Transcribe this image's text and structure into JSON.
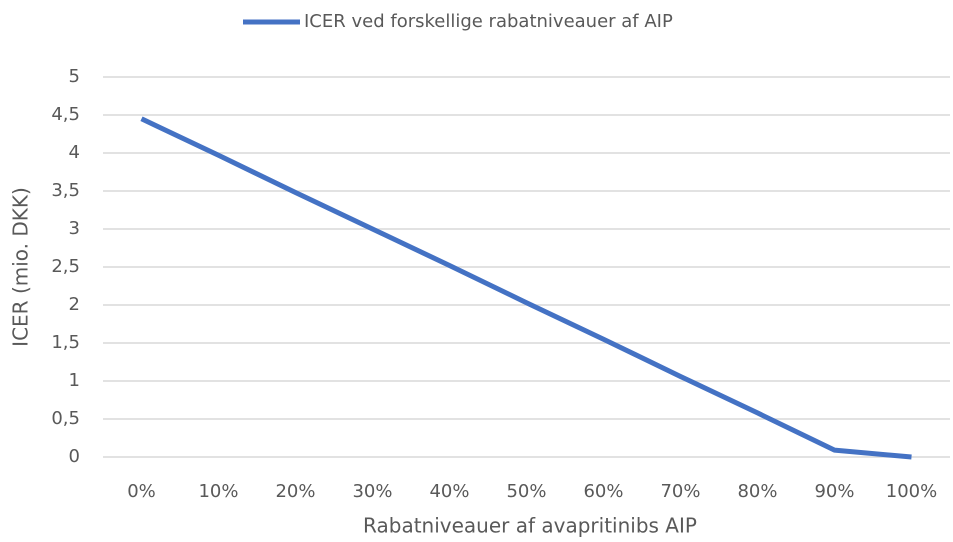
{
  "chart_data": {
    "type": "line",
    "x_label": "Rabatniveauer af avapritinibs AIP",
    "y_label": "ICER (mio. DKK)",
    "categories": [
      "0%",
      "10%",
      "20%",
      "30%",
      "40%",
      "50%",
      "60%",
      "70%",
      "80%",
      "90%",
      "100%"
    ],
    "series": [
      {
        "name": "ICER ved forskellige rabatniveauer af AIP",
        "color": "#4472c4",
        "values": [
          4.45,
          3.97,
          3.48,
          3.0,
          2.52,
          2.03,
          1.55,
          1.06,
          0.58,
          0.09,
          0
        ]
      }
    ],
    "ylim": [
      0,
      5
    ],
    "yticks": [
      0,
      {
        "value": 0.5,
        "label": "0,5"
      },
      1,
      {
        "value": 1.5,
        "label": "1,5"
      },
      2,
      {
        "value": 2.5,
        "label": "2,5"
      },
      3,
      {
        "value": 3.5,
        "label": "3,5"
      },
      4,
      {
        "value": 4.5,
        "label": "4,5"
      },
      5
    ],
    "grid": true,
    "legend": "top"
  }
}
